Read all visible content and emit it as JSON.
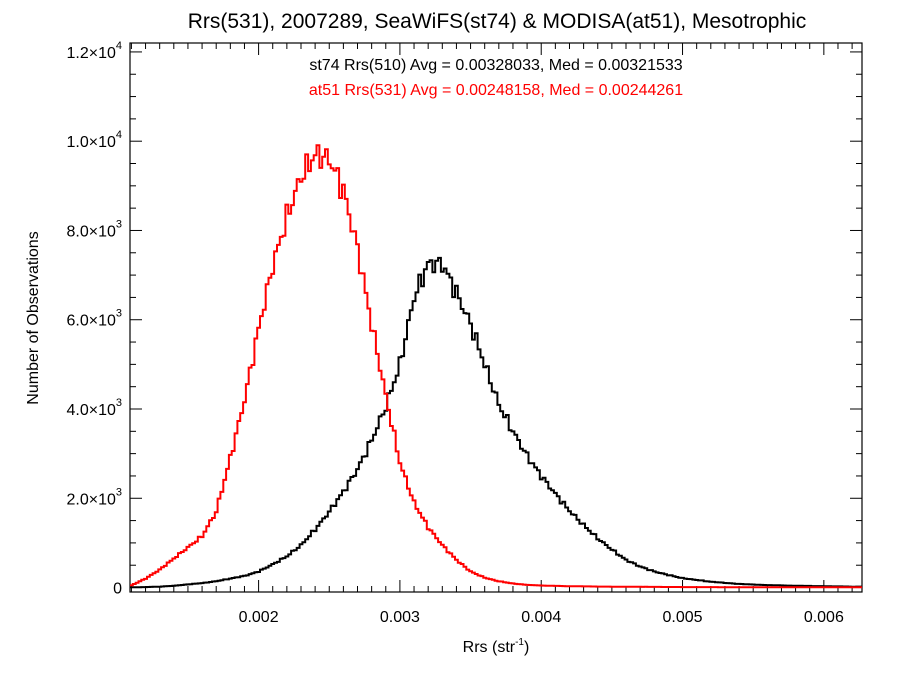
{
  "chart_data": {
    "type": "line",
    "title": "Rrs(531), 2007289, SeaWiFS(st74) & MODISA(at51), Mesotrophic",
    "xlabel": "Rrs (str",
    "xlabel_sup": "-1",
    "xlabel_suffix": ")",
    "ylabel": "Number of Observations",
    "xlim": [
      0.00109,
      0.00627
    ],
    "ylim": [
      -100,
      12200
    ],
    "grid": false,
    "x_tick_values": [
      0.002,
      0.003,
      0.004,
      0.005,
      0.006
    ],
    "x_tick_labels": [
      "0.002",
      "0.003",
      "0.004",
      "0.005",
      "0.006"
    ],
    "y_tick_values": [
      0,
      2000,
      4000,
      6000,
      8000,
      10000,
      12000
    ],
    "y_tick_labels": [
      {
        "base": "0",
        "exp": ""
      },
      {
        "base": "2.0×10",
        "exp": "3"
      },
      {
        "base": "4.0×10",
        "exp": "3"
      },
      {
        "base": "6.0×10",
        "exp": "3"
      },
      {
        "base": "8.0×10",
        "exp": "3"
      },
      {
        "base": "1.0×10",
        "exp": "4"
      },
      {
        "base": "1.2×10",
        "exp": "4"
      }
    ],
    "annotations": [
      {
        "text": "st74 Rrs(510) Avg = 0.00328033, Med = 0.00321533",
        "color": "#000000"
      },
      {
        "text": "at51 Rrs(531) Avg = 0.00248158, Med = 0.00244261",
        "color": "#ff0000"
      }
    ],
    "series": [
      {
        "color": "#000000",
        "x": [
          0.0011,
          0.0012,
          0.0013,
          0.0014,
          0.0015,
          0.0016,
          0.0017,
          0.0018,
          0.0019,
          0.002,
          0.0021,
          0.0022,
          0.0023,
          0.0024,
          0.0025,
          0.0026,
          0.0027,
          0.0028,
          0.0029,
          0.003,
          0.0031,
          0.0032,
          0.0033,
          0.0034,
          0.0035,
          0.0036,
          0.0037,
          0.0038,
          0.0039,
          0.004,
          0.0041,
          0.0042,
          0.0043,
          0.0044,
          0.0045,
          0.0046,
          0.0047,
          0.0048,
          0.0049,
          0.005,
          0.0052,
          0.0054,
          0.0056,
          0.0058,
          0.006,
          0.0062
        ],
        "y": [
          5,
          10,
          20,
          40,
          70,
          100,
          140,
          200,
          260,
          360,
          520,
          700,
          950,
          1300,
          1700,
          2150,
          2650,
          3300,
          4050,
          5000,
          6500,
          7250,
          7250,
          6600,
          5900,
          5000,
          4100,
          3500,
          2950,
          2500,
          2100,
          1720,
          1400,
          1100,
          850,
          620,
          470,
          360,
          280,
          210,
          130,
          80,
          55,
          40,
          30,
          20
        ]
      },
      {
        "color": "#ff0000",
        "x": [
          0.0011,
          0.0012,
          0.0013,
          0.0014,
          0.0015,
          0.0016,
          0.0017,
          0.0018,
          0.0019,
          0.002,
          0.0021,
          0.0022,
          0.0023,
          0.0024,
          0.0025,
          0.0026,
          0.0027,
          0.0028,
          0.0029,
          0.003,
          0.0031,
          0.0032,
          0.0033,
          0.0034,
          0.0035,
          0.0036,
          0.0037,
          0.0038,
          0.0039,
          0.004,
          0.0042,
          0.0044,
          0.0046,
          0.0048,
          0.005,
          0.0052,
          0.0054,
          0.0056,
          0.0058,
          0.006,
          0.0062
        ],
        "y": [
          50,
          200,
          400,
          650,
          900,
          1150,
          1700,
          2900,
          4200,
          5800,
          7200,
          8300,
          9200,
          9700,
          9600,
          8900,
          7600,
          5900,
          4300,
          2800,
          1900,
          1350,
          950,
          620,
          360,
          220,
          140,
          90,
          60,
          45,
          30,
          22,
          18,
          14,
          11,
          9,
          8,
          7,
          6,
          5,
          5
        ]
      }
    ]
  }
}
